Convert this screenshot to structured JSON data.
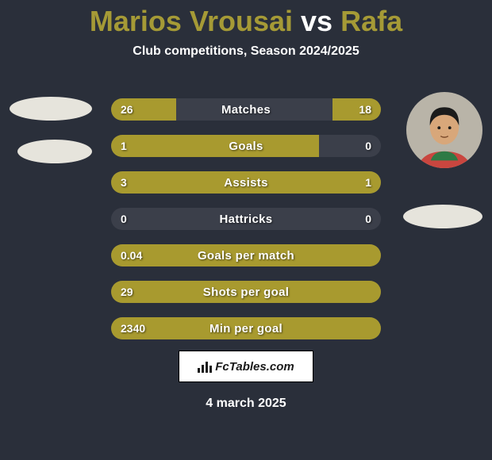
{
  "background_color": "#2a2f3a",
  "title": {
    "player1": "Marios Vrousai",
    "vs": "vs",
    "player2": "Rafa",
    "player_color": "#a59a36",
    "vs_color": "#ffffff",
    "fontsize": 36
  },
  "subtitle": {
    "text": "Club competitions, Season 2024/2025",
    "fontsize": 16
  },
  "players": {
    "left": {
      "has_image": false,
      "name": "Marios Vrousai"
    },
    "right": {
      "has_image": true,
      "name": "Rafa",
      "jersey_color": "#c9463f",
      "collar_color": "#2e7a45",
      "skin": "#d8a77a",
      "hair": "#1b1b1b"
    }
  },
  "stats": {
    "bar_left_color": "#a89a2f",
    "bar_right_color": "#a89a2f",
    "track_color": "#3b3f4a",
    "rows": [
      {
        "label": "Matches",
        "left_val": "26",
        "right_val": "18",
        "left_pct": 24,
        "right_pct": 18
      },
      {
        "label": "Goals",
        "left_val": "1",
        "right_val": "0",
        "left_pct": 77,
        "right_pct": 0
      },
      {
        "label": "Assists",
        "left_val": "3",
        "right_val": "1",
        "left_pct": 77,
        "right_pct": 23
      },
      {
        "label": "Hattricks",
        "left_val": "0",
        "right_val": "0",
        "left_pct": 0,
        "right_pct": 0
      },
      {
        "label": "Goals per match",
        "left_val": "0.04",
        "right_val": "",
        "left_pct": 100,
        "right_pct": 0
      },
      {
        "label": "Shots per goal",
        "left_val": "29",
        "right_val": "",
        "left_pct": 100,
        "right_pct": 0
      },
      {
        "label": "Min per goal",
        "left_val": "2340",
        "right_val": "",
        "left_pct": 100,
        "right_pct": 0
      }
    ]
  },
  "footer": {
    "site": "FcTables.com",
    "date": "4 march 2025"
  }
}
